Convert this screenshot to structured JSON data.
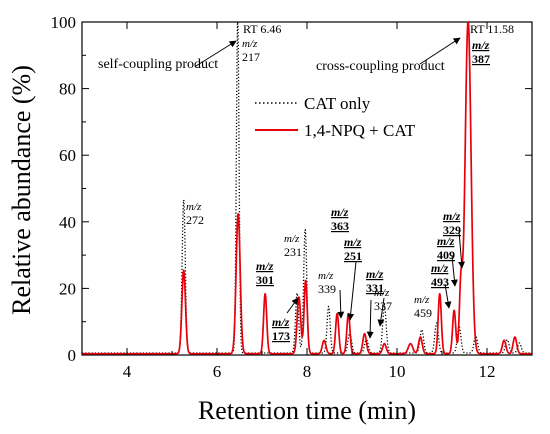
{
  "chart_data": {
    "type": "line",
    "xlabel": "Retention time (min)",
    "ylabel": "Relative abundance (%)",
    "xlim": [
      3,
      13
    ],
    "ylim": [
      0,
      100
    ],
    "xticks": [
      4,
      6,
      8,
      10,
      12
    ],
    "yticks": [
      0,
      20,
      40,
      60,
      80,
      100
    ],
    "legend": {
      "placement": "center-right",
      "entries": [
        "CAT only",
        "1,4-NPQ + CAT"
      ]
    },
    "series": [
      {
        "name": "CAT only",
        "style": "dotted",
        "color": "#000000",
        "baseline": 0.6,
        "peaks": [
          [
            5.26,
            46,
            0.035
          ],
          [
            6.46,
            100,
            0.03
          ],
          [
            7.78,
            18,
            0.035
          ],
          [
            7.96,
            37,
            0.035
          ],
          [
            8.48,
            14,
            0.035
          ],
          [
            8.95,
            6,
            0.04
          ],
          [
            9.32,
            4,
            0.04
          ],
          [
            9.72,
            14,
            0.04
          ],
          [
            10.55,
            7,
            0.04
          ],
          [
            10.88,
            9,
            0.04
          ],
          [
            11.38,
            8,
            0.04
          ],
          [
            11.75,
            5,
            0.04
          ],
          [
            12.45,
            4,
            0.04
          ],
          [
            12.72,
            3,
            0.04
          ]
        ]
      },
      {
        "name": "1,4-NPQ + CAT",
        "style": "solid",
        "color": "#e8000b",
        "baseline": 0.4,
        "peaks": [
          [
            5.26,
            25,
            0.04
          ],
          [
            6.47,
            42,
            0.045
          ],
          [
            7.07,
            18,
            0.035
          ],
          [
            7.82,
            17,
            0.04
          ],
          [
            7.97,
            22,
            0.035
          ],
          [
            8.38,
            4,
            0.04
          ],
          [
            8.67,
            12,
            0.035
          ],
          [
            8.92,
            12,
            0.035
          ],
          [
            9.28,
            6,
            0.04
          ],
          [
            9.72,
            3,
            0.04
          ],
          [
            10.3,
            3,
            0.05
          ],
          [
            10.52,
            5,
            0.04
          ],
          [
            10.95,
            18,
            0.035
          ],
          [
            11.27,
            13,
            0.035
          ],
          [
            11.42,
            20,
            0.035
          ],
          [
            11.58,
            100,
            0.065
          ],
          [
            12.38,
            4,
            0.04
          ],
          [
            12.62,
            5,
            0.04
          ]
        ]
      }
    ],
    "annotations": {
      "rt_labels": [
        {
          "text": "RT 6.46",
          "x": 6.46,
          "y": 100
        },
        {
          "text": "RT 11.58",
          "x": 11.58,
          "y": 100
        }
      ],
      "products": [
        {
          "text": "self-coupling product",
          "x": 6.46,
          "y": 100
        },
        {
          "text": "cross-coupling product",
          "x": 11.55,
          "y": 100
        }
      ],
      "mz_prefix": "m/z",
      "plain_labels": [
        {
          "mz": "217",
          "x": 6.46
        },
        {
          "mz": "272",
          "x": 5.26
        },
        {
          "mz": "231",
          "x": 7.96
        },
        {
          "mz": "339",
          "x": 8.48
        },
        {
          "mz": "337",
          "x": 9.72
        },
        {
          "mz": "459",
          "x": 10.55
        }
      ],
      "bold_labels": [
        {
          "mz": "387",
          "x": 11.58
        },
        {
          "mz": "301",
          "x": 7.07
        },
        {
          "mz": "173",
          "x": 7.82
        },
        {
          "mz": "363",
          "x": 8.67
        },
        {
          "mz": "251",
          "x": 8.92
        },
        {
          "mz": "331",
          "x": 9.28
        },
        {
          "mz": "329",
          "x": 11.42
        },
        {
          "mz": "409",
          "x": 11.42
        },
        {
          "mz": "493",
          "x": 11.27
        }
      ]
    }
  }
}
